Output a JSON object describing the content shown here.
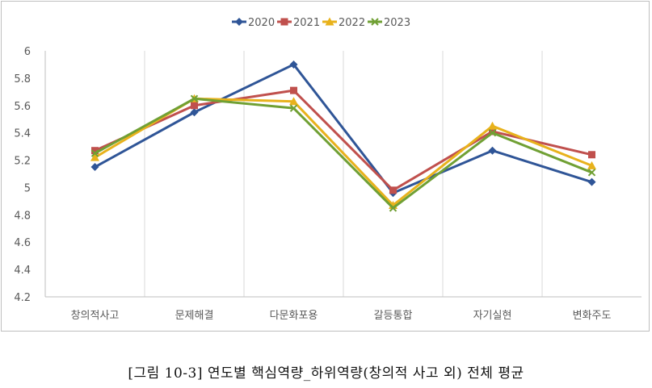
{
  "caption": "[그림 10-3] 연도별 핵심역량_하위역량(창의적 사고 외) 전체 평균",
  "chart_data": {
    "type": "line",
    "categories": [
      "창의적사고",
      "문제해결",
      "다문화포용",
      "갈등통합",
      "자기실현",
      "변화주도"
    ],
    "ylim": [
      4.2,
      6
    ],
    "yticks": [
      "6",
      "5.8",
      "5.6",
      "5.4",
      "5.2",
      "5",
      "4.8",
      "4.6",
      "4.4",
      "4.2"
    ],
    "ytick_values": [
      6,
      5.8,
      5.6,
      5.4,
      5.2,
      5,
      4.8,
      4.6,
      4.4,
      4.2
    ],
    "grid": "vertical",
    "legend_position": "top",
    "series": [
      {
        "name": "2020",
        "color": "#2f5597",
        "marker": "diamond",
        "values": [
          5.15,
          5.55,
          5.9,
          4.96,
          5.27,
          5.04
        ]
      },
      {
        "name": "2021",
        "color": "#c0504d",
        "marker": "square",
        "values": [
          5.27,
          5.6,
          5.71,
          4.98,
          5.41,
          5.24
        ]
      },
      {
        "name": "2022",
        "color": "#e8b21c",
        "marker": "triangle",
        "values": [
          5.22,
          5.65,
          5.63,
          4.87,
          5.45,
          5.16
        ]
      },
      {
        "name": "2023",
        "color": "#70a034",
        "marker": "x",
        "values": [
          5.25,
          5.65,
          5.58,
          4.85,
          5.4,
          5.11
        ]
      }
    ]
  }
}
